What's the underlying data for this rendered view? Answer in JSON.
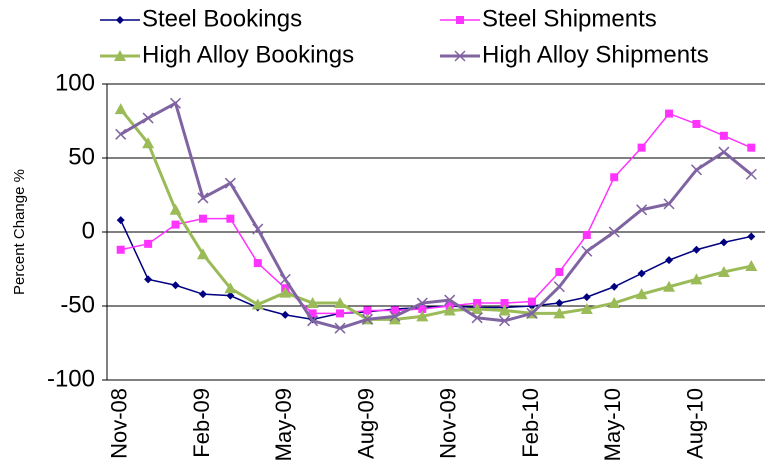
{
  "chart_data": {
    "type": "line",
    "y_label": "Percent Change %",
    "categories": [
      "Nov-08",
      null,
      null,
      "Feb-09",
      null,
      null,
      "May-09",
      null,
      null,
      "Aug-09",
      null,
      null,
      "Nov-09",
      null,
      null,
      "Feb-10",
      null,
      null,
      "May-10",
      null,
      null,
      "Aug-10",
      null,
      null
    ],
    "series": [
      {
        "name": "Steel Bookings",
        "color": "#000080",
        "marker": "diamond",
        "values": [
          8,
          -32,
          -36,
          -42,
          -43,
          -51,
          -56,
          -59,
          -55,
          -54,
          -52,
          -51,
          -50,
          -51,
          -51,
          -50,
          -48,
          -44,
          -37,
          -28,
          -19,
          -12,
          -7,
          -3
        ]
      },
      {
        "name": "Steel Shipments",
        "color": "#ff33ff",
        "marker": "square",
        "values": [
          -12,
          -8,
          5,
          9,
          9,
          -21,
          -38,
          -55,
          -55,
          -53,
          -53,
          -52,
          -50,
          -48,
          -48,
          -47,
          -27,
          -2,
          37,
          57,
          80,
          73,
          65,
          57
        ]
      },
      {
        "name": "High Alloy Bookings",
        "color": "#9bbb59",
        "marker": "triangle",
        "values": [
          83,
          60,
          15,
          -15,
          -38,
          -49,
          -41,
          -48,
          -48,
          -59,
          -59,
          -57,
          -53,
          -52,
          -53,
          -55,
          -55,
          -52,
          -48,
          -42,
          -37,
          -32,
          -27,
          -23
        ]
      },
      {
        "name": "High Alloy Shipments",
        "color": "#8064a2",
        "marker": "x",
        "values": [
          66,
          77,
          87,
          23,
          33,
          2,
          -32,
          -60,
          -65,
          -59,
          -57,
          -48,
          -46,
          -58,
          -60,
          -55,
          -37,
          -13,
          0,
          15,
          19,
          42,
          54,
          39
        ]
      }
    ],
    "ylim": [
      -100,
      100
    ],
    "yticks": [
      100,
      50,
      0,
      -50,
      -100
    ],
    "grid": true
  }
}
